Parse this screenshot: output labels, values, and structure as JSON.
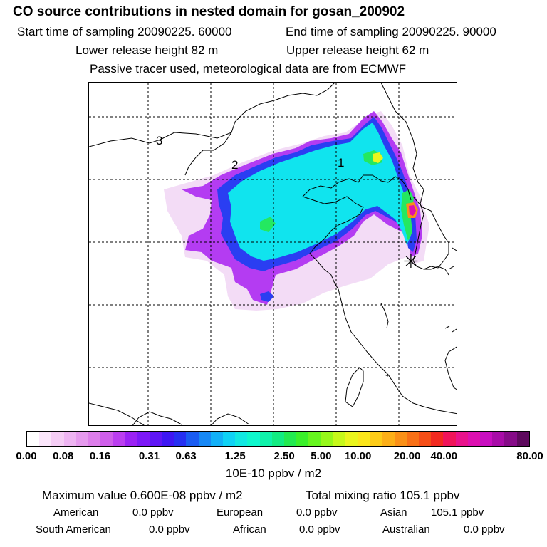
{
  "header": {
    "title": "CO  source contributions in nested domain for gosan_200902",
    "start_time": "Start time of sampling 20090225. 60000",
    "end_time": "End time of sampling 20090225. 90000",
    "lower_release": "Lower release height   82 m",
    "upper_release": "Upper release height   62 m",
    "tracer_note": "Passive tracer used, meteorological data are from ECMWF"
  },
  "map": {
    "region_labels": [
      "1",
      "2",
      "3"
    ],
    "receptor_symbol": "✳"
  },
  "colorbar": {
    "colors": [
      "#ffffff",
      "#fbe6fb",
      "#f5cdf5",
      "#eeb4f2",
      "#e69aee",
      "#dd7eea",
      "#cf5fea",
      "#bb3ef0",
      "#9b22f4",
      "#7d19f7",
      "#5f16f5",
      "#3e17f3",
      "#2630f2",
      "#1a5cf2",
      "#1788f5",
      "#12b0f7",
      "#0fd2f5",
      "#11e8e2",
      "#0ef7cd",
      "#10f2aa",
      "#12ec82",
      "#22ea50",
      "#3af02a",
      "#66f51e",
      "#96f71a",
      "#c6f81a",
      "#eaf51d",
      "#fbe61b",
      "#fdcc19",
      "#fcaf18",
      "#fa9017",
      "#f87016",
      "#f54e17",
      "#f22a20",
      "#f0145a",
      "#e9128c",
      "#dd10b0",
      "#c80ec0",
      "#a80ca8",
      "#860b88",
      "#5e095e"
    ],
    "tick_labels": [
      "0.00",
      "0.08",
      "0.16",
      "0.31",
      "0.63",
      "1.25",
      "2.50",
      "5.00",
      "10.00",
      "20.00",
      "40.00",
      "80.00"
    ],
    "units": "10E-10 ppbv / m2"
  },
  "summary": {
    "max_value": "Maximum value  0.600E-08 ppbv / m2",
    "total_mixing": "Total mixing ratio      105.1 ppbv",
    "american_label": "American",
    "american_value": "0.0 ppbv",
    "european_label": "European",
    "european_value": "0.0 ppbv",
    "asian_label": "Asian",
    "asian_value": "105.1 ppbv",
    "south_american_label": "South American",
    "south_american_value": "0.0 ppbv",
    "african_label": "African",
    "african_value": "0.0 ppbv",
    "australian_label": "Australian",
    "australian_value": "0.0 ppbv"
  }
}
